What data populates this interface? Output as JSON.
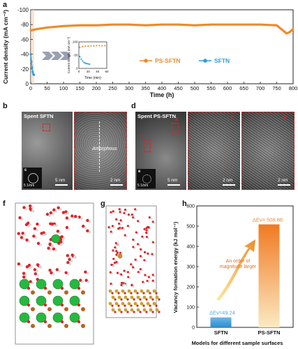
{
  "panel_labels": {
    "a": "a",
    "b": "b",
    "c": "c",
    "d": "d",
    "e": "e",
    "f": "f",
    "g": "g",
    "h": "h"
  },
  "chart_data": [
    {
      "type": "line",
      "panel": "a",
      "xlabel": "Time (h)",
      "ylabel": "Current density (mA cm⁻²)",
      "xlim": [
        0,
        800
      ],
      "ylim": [
        -100,
        0
      ],
      "ylim_display": "inverted (0 at bottom, -100 at top)",
      "xticks": [
        "0",
        "50",
        "100",
        "150",
        "200",
        "250",
        "300",
        "350",
        "400",
        "450",
        "500",
        "550",
        "600",
        "650",
        "700",
        "750",
        "800"
      ],
      "yticks": [
        "-100",
        "-80",
        "-60",
        "-40",
        "-20",
        "0"
      ],
      "legend_placement": "middle-right",
      "series": [
        {
          "name": "PS-SFTN",
          "color": "#f08a28",
          "x": [
            0,
            10,
            20,
            50,
            100,
            150,
            200,
            250,
            300,
            350,
            400,
            450,
            500,
            550,
            600,
            650,
            700,
            750,
            780,
            790,
            800
          ],
          "y": [
            -72,
            -73,
            -74,
            -76,
            -78,
            -79,
            -79,
            -80,
            -80,
            -79,
            -80,
            -80,
            -79,
            -80,
            -80,
            -80,
            -80,
            -79,
            -68,
            -70,
            -74
          ]
        },
        {
          "name": "SFTN",
          "color": "#2e9fd8",
          "x": [
            0,
            2,
            4,
            6,
            8,
            10
          ],
          "y": [
            -40,
            -30,
            -22,
            -16,
            -13,
            -12
          ]
        }
      ],
      "inset": {
        "xlabel": "Time (min)",
        "ylabel": "Current density (mA cm⁻²)",
        "xlim": [
          0,
          60
        ],
        "ylim": [
          -100,
          0
        ],
        "xticks": [
          "0",
          "20",
          "40",
          "60"
        ],
        "yticks": [
          "-100",
          "-50",
          "0"
        ],
        "series": [
          {
            "name": "PS-SFTN",
            "color": "#f08a28",
            "x": [
              2,
              8,
              14,
              20,
              26,
              32,
              38,
              44,
              50,
              56
            ],
            "y": [
              -80,
              -82,
              -84,
              -84,
              -85,
              -85,
              -86,
              -86,
              -85,
              -86
            ]
          },
          {
            "name": "SFTN",
            "color": "#2e9fd8",
            "x": [
              2,
              5,
              8,
              11,
              14,
              17,
              20,
              23
            ],
            "y": [
              -45,
              -35,
              -28,
              -22,
              -20,
              -18,
              -17,
              -16
            ]
          }
        ]
      }
    },
    {
      "type": "bar",
      "panel": "h",
      "categories": [
        "SFTN",
        "PS-SFTN"
      ],
      "values": [
        49.24,
        508.88
      ],
      "colors": [
        "#4fa3dc",
        "#f0842a"
      ],
      "ylabel": "Vacancy formation energy (kJ mol⁻¹)",
      "xlabel": "Models for different sample surfaces",
      "ylim": [
        0,
        600
      ],
      "yticks": [
        "0",
        "100",
        "200",
        "300",
        "400",
        "500",
        "600"
      ],
      "data_labels": [
        "ΔEv=49.24",
        "ΔEv= 508.88"
      ],
      "annotation": "An order of magnitude larger"
    }
  ],
  "tem": {
    "b_title": "Spent SFTN",
    "d_title": "Spent PS-SFTN",
    "amorphous": "Amorphous",
    "scale_5nm": "5 nm",
    "scale_2nm": "2 nm",
    "scale_5_1nm": "5 1/nm",
    "roman_i": "I",
    "roman_ii": "II"
  }
}
